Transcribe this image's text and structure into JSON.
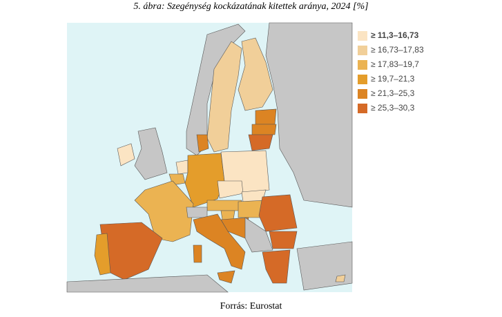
{
  "title": "5. ábra: Szegénység kockázatának kitettek aránya, 2024 [%]",
  "legend": [
    {
      "label": "≥ 11,3–16,73",
      "color": "#fbe4c3"
    },
    {
      "label": "≥ 16,73–17,83",
      "color": "#f1cf99"
    },
    {
      "label": "≥ 17,83–19,7",
      "color": "#ebb352"
    },
    {
      "label": "≥ 19,7–21,3",
      "color": "#e49d2b"
    },
    {
      "label": "≥ 21,3–25,3",
      "color": "#dc8423"
    },
    {
      "label": "≥ 25,3–30,3",
      "color": "#d56a27"
    }
  ],
  "source": "Forrás: Eurostat"
}
